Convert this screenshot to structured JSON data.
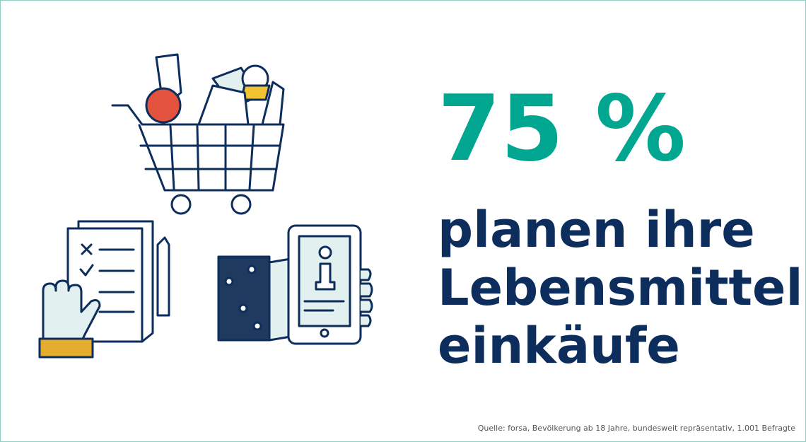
{
  "headline": {
    "value": "75 %",
    "lines": [
      "planen ihre",
      "Lebensmittel-",
      "einkäufe"
    ]
  },
  "source": "Quelle: forsa, Bevölkerung ab 18 Jahre, bundesweit repräsentativ, 1.001 Befragte"
}
